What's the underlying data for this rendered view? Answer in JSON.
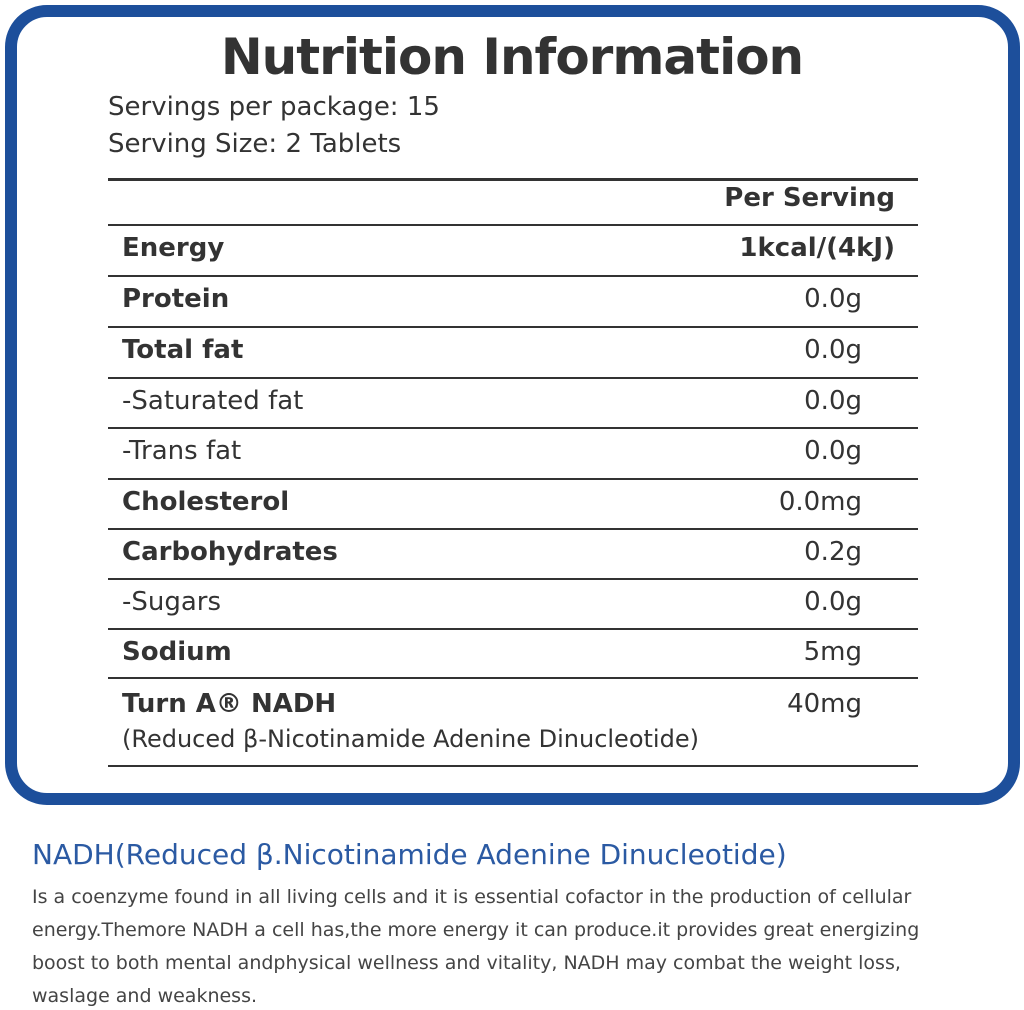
{
  "title": "Nutrition Information",
  "servings": [
    "Servings per package: 15",
    "Serving Size: 2 Tablets"
  ],
  "table": {
    "header": "Per Serving",
    "rows": [
      [
        "Energy",
        "1kcal/(4kJ)"
      ],
      [
        "Protein",
        "0.0g"
      ],
      [
        "Total fat",
        "0.0g"
      ],
      [
        "-Saturated fat",
        "0.0g"
      ],
      [
        "-Trans fat",
        "0.0g"
      ],
      [
        "Cholesterol",
        "0.0mg"
      ],
      [
        "Carbohydrates",
        "0.2g"
      ],
      [
        "-Sugars",
        "0.0g"
      ],
      [
        "Sodium",
        "5mg"
      ],
      [
        "Turn A® NADH",
        "40mg"
      ]
    ],
    "note": "(Reduced β-Nicotinamide Adenine Dinucleotide)"
  },
  "footer": {
    "heading": "NADH(Reduced β.Nicotinamide Adenine Dinucleotide)",
    "lines": [
      "Is a coenzyme found in all living cells and it is essential cofactor in the production of cellular",
      "energy.Themore NADH a cell has,the more energy it can produce.it provides great energizing",
      "boost to both mental andphysical wellness and vitality, NADH may combat the weight loss,",
      "waslage and weakness."
    ]
  }
}
